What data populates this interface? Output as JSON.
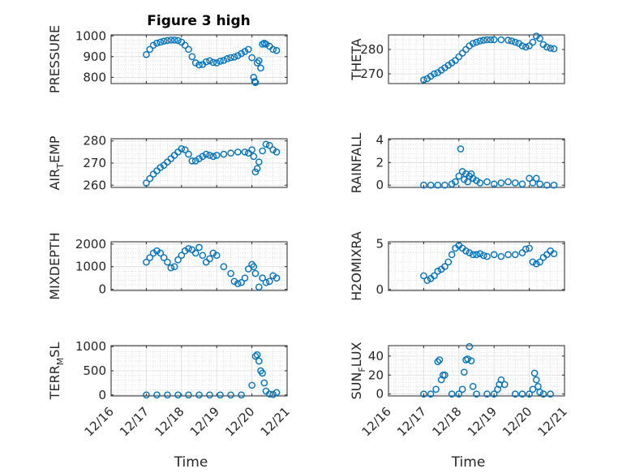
{
  "chart_data": [
    {
      "type": "scatter",
      "title": "Figure 3 high",
      "ylabel": "PRESSURE",
      "xlabel": "",
      "ylim": [
        770,
        1005
      ],
      "yticks": [
        800,
        900,
        1000
      ],
      "marker_color": "#0072BD",
      "grid": true,
      "x": [
        17.0,
        17.1,
        17.2,
        17.3,
        17.4,
        17.5,
        17.6,
        17.7,
        17.8,
        17.9,
        18.0,
        18.1,
        18.2,
        18.3,
        18.4,
        18.5,
        18.6,
        18.7,
        18.8,
        18.9,
        19.0,
        19.1,
        19.2,
        19.3,
        19.4,
        19.5,
        19.6,
        19.7,
        19.8,
        19.9,
        20.0,
        20.05,
        20.08,
        20.1,
        20.15,
        20.2,
        20.25,
        20.3,
        20.35,
        20.4,
        20.5,
        20.6,
        20.7
      ],
      "y": [
        910,
        935,
        955,
        965,
        970,
        975,
        978,
        980,
        980,
        978,
        970,
        955,
        935,
        900,
        870,
        860,
        862,
        875,
        880,
        872,
        870,
        878,
        882,
        890,
        895,
        898,
        905,
        915,
        925,
        935,
        895,
        800,
        780,
        775,
        870,
        880,
        845,
        960,
        965,
        960,
        950,
        935,
        930
      ]
    },
    {
      "type": "scatter",
      "title": "",
      "ylabel": "THETA",
      "xlabel": "",
      "ylim": [
        266,
        286
      ],
      "yticks": [
        270,
        280
      ],
      "marker_color": "#0072BD",
      "grid": true,
      "x": [
        17.0,
        17.1,
        17.2,
        17.3,
        17.4,
        17.5,
        17.6,
        17.7,
        17.8,
        17.9,
        18.0,
        18.1,
        18.2,
        18.3,
        18.4,
        18.5,
        18.6,
        18.7,
        18.8,
        18.9,
        19.0,
        19.2,
        19.4,
        19.5,
        19.6,
        19.7,
        19.8,
        19.9,
        20.0,
        20.1,
        20.2,
        20.3,
        20.4,
        20.5,
        20.6,
        20.7
      ],
      "y": [
        267.5,
        268,
        269,
        270,
        270.5,
        271.5,
        272.5,
        273.5,
        274.5,
        275.5,
        277,
        278.5,
        280,
        281.5,
        282.5,
        283,
        283.5,
        283.8,
        284,
        284,
        284,
        284,
        283.8,
        283.5,
        283,
        282.5,
        281.5,
        281,
        281.5,
        283,
        285.5,
        284.5,
        282,
        281,
        280.5,
        280.3
      ]
    },
    {
      "type": "scatter",
      "title": "",
      "ylabel": "AIR_TEMP",
      "xlabel": "",
      "ylim": [
        259,
        281
      ],
      "yticks": [
        260,
        270,
        280
      ],
      "marker_color": "#0072BD",
      "grid": true,
      "x": [
        17.0,
        17.1,
        17.2,
        17.3,
        17.4,
        17.5,
        17.6,
        17.7,
        17.8,
        17.9,
        18.0,
        18.1,
        18.2,
        18.3,
        18.4,
        18.5,
        18.6,
        18.7,
        18.8,
        18.9,
        19.0,
        19.2,
        19.4,
        19.6,
        19.8,
        19.9,
        20.0,
        20.05,
        20.1,
        20.15,
        20.2,
        20.3,
        20.4,
        20.5,
        20.6,
        20.7
      ],
      "y": [
        261,
        263,
        265,
        266.5,
        268,
        269,
        270.5,
        272,
        273.5,
        275,
        276.5,
        276,
        274,
        271,
        271,
        272,
        273,
        274,
        273.5,
        273,
        273.5,
        274,
        274.5,
        275,
        275,
        274.5,
        276,
        273,
        266,
        267.5,
        270.5,
        275.5,
        278.5,
        278,
        276,
        275
      ]
    },
    {
      "type": "scatter",
      "title": "",
      "ylabel": "RAINFALL",
      "xlabel": "",
      "ylim": [
        -0.2,
        4.1
      ],
      "yticks": [
        0,
        2,
        4
      ],
      "marker_color": "#0072BD",
      "grid": true,
      "x": [
        17.0,
        17.2,
        17.4,
        17.6,
        17.8,
        17.9,
        18.0,
        18.05,
        18.1,
        18.15,
        18.2,
        18.25,
        18.3,
        18.35,
        18.4,
        18.5,
        18.6,
        18.8,
        19.0,
        19.2,
        19.4,
        19.6,
        19.8,
        20.0,
        20.1,
        20.2,
        20.3,
        20.5,
        20.7
      ],
      "y": [
        0,
        0,
        0,
        0,
        0.1,
        0.3,
        0.8,
        3.2,
        1.2,
        0.5,
        1.0,
        0.3,
        0.8,
        1.0,
        0.6,
        0.4,
        0.2,
        0.3,
        0.1,
        0.2,
        0.3,
        0.2,
        0.1,
        0.6,
        0.2,
        0.6,
        0.1,
        0,
        0
      ]
    },
    {
      "type": "scatter",
      "title": "",
      "ylabel": "MIXDEPTH",
      "xlabel": "",
      "ylim": [
        -50,
        2100
      ],
      "yticks": [
        0,
        1000,
        2000
      ],
      "marker_color": "#0072BD",
      "grid": true,
      "x": [
        17.0,
        17.1,
        17.2,
        17.3,
        17.4,
        17.5,
        17.6,
        17.7,
        17.8,
        17.9,
        18.0,
        18.1,
        18.2,
        18.3,
        18.4,
        18.5,
        18.6,
        18.7,
        18.8,
        18.9,
        19.0,
        19.2,
        19.4,
        19.5,
        19.6,
        19.7,
        19.8,
        19.9,
        20.0,
        20.05,
        20.1,
        20.2,
        20.3,
        20.4,
        20.5,
        20.6,
        20.7
      ],
      "y": [
        1200,
        1400,
        1600,
        1700,
        1600,
        1400,
        1200,
        950,
        1000,
        1300,
        1500,
        1700,
        1800,
        1750,
        1600,
        1850,
        1500,
        1200,
        1350,
        1600,
        1500,
        1000,
        700,
        350,
        250,
        300,
        500,
        900,
        1100,
        1000,
        700,
        100,
        500,
        300,
        350,
        600,
        500
      ]
    },
    {
      "type": "scatter",
      "title": "",
      "ylabel": "H2OMIXRA",
      "xlabel": "",
      "ylim": [
        -0.1,
        5.2
      ],
      "yticks": [
        0,
        5
      ],
      "marker_color": "#0072BD",
      "grid": true,
      "x": [
        17.0,
        17.1,
        17.2,
        17.3,
        17.4,
        17.5,
        17.6,
        17.7,
        17.8,
        17.9,
        18.0,
        18.1,
        18.2,
        18.3,
        18.4,
        18.5,
        18.6,
        18.7,
        18.8,
        19.0,
        19.2,
        19.4,
        19.6,
        19.8,
        19.9,
        20.0,
        20.1,
        20.2,
        20.3,
        20.4,
        20.5,
        20.6,
        20.7
      ],
      "y": [
        1.5,
        1.0,
        1.2,
        1.5,
        2.0,
        2.2,
        2.5,
        3.0,
        3.8,
        4.5,
        4.8,
        4.5,
        4.2,
        4.0,
        3.8,
        3.8,
        3.9,
        3.7,
        3.6,
        3.8,
        3.6,
        3.8,
        3.8,
        4.0,
        4.4,
        4.5,
        3.0,
        2.8,
        3.0,
        3.5,
        3.8,
        4.2,
        3.9
      ]
    },
    {
      "type": "scatter",
      "title": "",
      "ylabel": "TERR_MSL",
      "xlabel": "Time",
      "ylim": [
        -20,
        1020
      ],
      "yticks": [
        0,
        500,
        1000
      ],
      "xtick_labels": [
        "12/16",
        "12/17",
        "12/18",
        "12/19",
        "12/20",
        "12/21"
      ],
      "marker_color": "#0072BD",
      "grid": true,
      "x": [
        17.0,
        17.3,
        17.6,
        17.9,
        18.2,
        18.5,
        18.8,
        19.1,
        19.4,
        19.7,
        20.0,
        20.1,
        20.15,
        20.2,
        20.25,
        20.3,
        20.35,
        20.4,
        20.5,
        20.6,
        20.7
      ],
      "y": [
        0,
        0,
        0,
        0,
        0,
        0,
        0,
        0,
        0,
        0,
        200,
        800,
        830,
        700,
        500,
        450,
        250,
        80,
        20,
        10,
        50
      ]
    },
    {
      "type": "scatter",
      "title": "",
      "ylabel": "SUN_FLUX",
      "xlabel": "Time",
      "ylim": [
        -2,
        51
      ],
      "yticks": [
        0,
        20,
        40
      ],
      "xtick_labels": [
        "12/16",
        "12/17",
        "12/18",
        "12/19",
        "12/20",
        "12/21"
      ],
      "marker_color": "#0072BD",
      "grid": true,
      "x": [
        17.0,
        17.2,
        17.35,
        17.4,
        17.45,
        17.5,
        17.55,
        17.6,
        17.8,
        18.0,
        18.1,
        18.15,
        18.2,
        18.25,
        18.3,
        18.35,
        18.4,
        18.5,
        18.8,
        19.0,
        19.1,
        19.15,
        19.2,
        19.3,
        19.6,
        19.8,
        20.0,
        20.1,
        20.15,
        20.2,
        20.25,
        20.3,
        20.4,
        20.6
      ],
      "y": [
        0,
        0,
        5,
        34,
        36,
        15,
        20,
        20,
        0,
        0,
        5,
        23,
        36,
        37,
        50,
        35,
        8,
        0,
        0,
        0,
        5,
        10,
        15,
        10,
        0,
        0,
        0,
        5,
        22,
        15,
        8,
        2,
        0,
        0
      ]
    }
  ]
}
